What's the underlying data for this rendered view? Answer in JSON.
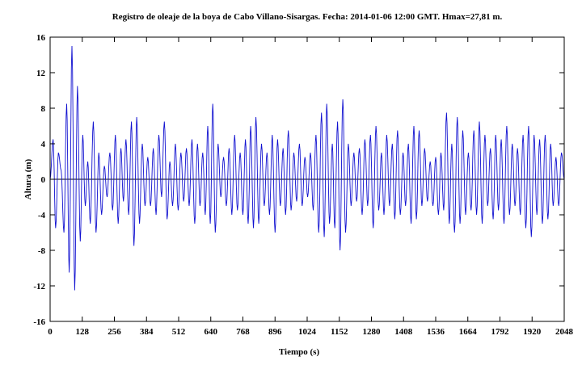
{
  "chart_data": {
    "type": "line",
    "title": "Registro de oleaje de la boya de Cabo Villano-Sisargas. Fecha: 2014-01-06 12:00 GMT. Hmax=27,81 m.",
    "xlabel": "Tiempo (s)",
    "ylabel": "Altura (m)",
    "xlim": [
      0,
      2048
    ],
    "ylim": [
      -16,
      16
    ],
    "xticks": [
      0,
      128,
      256,
      384,
      512,
      640,
      768,
      896,
      1024,
      1152,
      1280,
      1408,
      1536,
      1664,
      1792,
      1920,
      2048
    ],
    "yticks": [
      16,
      12,
      8,
      4,
      0,
      -4,
      -8,
      -12,
      -16
    ],
    "grid": false,
    "zero_line": true,
    "series_color": "#1010d0",
    "series": [
      {
        "peaks": [
          [
            0,
            0
          ],
          [
            12,
            4.5
          ],
          [
            22,
            -5.5
          ],
          [
            33,
            3
          ],
          [
            44,
            1
          ],
          [
            55,
            -6
          ],
          [
            66,
            8.5
          ],
          [
            76,
            -10.5
          ],
          [
            87,
            15
          ],
          [
            98,
            -12.5
          ],
          [
            109,
            10.5
          ],
          [
            120,
            -7
          ],
          [
            130,
            5
          ],
          [
            140,
            -3
          ],
          [
            150,
            2
          ],
          [
            160,
            -5
          ],
          [
            172,
            6.5
          ],
          [
            183,
            -6
          ],
          [
            194,
            3
          ],
          [
            205,
            -4
          ],
          [
            216,
            1.5
          ],
          [
            227,
            -2
          ],
          [
            238,
            3
          ],
          [
            249,
            -3.5
          ],
          [
            260,
            5
          ],
          [
            271,
            -5
          ],
          [
            282,
            3.5
          ],
          [
            292,
            -2.5
          ],
          [
            302,
            4.5
          ],
          [
            313,
            -4
          ],
          [
            324,
            6.5
          ],
          [
            334,
            -7.5
          ],
          [
            345,
            7
          ],
          [
            356,
            -5
          ],
          [
            367,
            4
          ],
          [
            378,
            -3
          ],
          [
            389,
            2.5
          ],
          [
            400,
            -3
          ],
          [
            411,
            3.5
          ],
          [
            422,
            -4
          ],
          [
            433,
            5
          ],
          [
            444,
            -2
          ],
          [
            455,
            6.5
          ],
          [
            466,
            -4.5
          ],
          [
            477,
            2
          ],
          [
            488,
            -3
          ],
          [
            499,
            4
          ],
          [
            510,
            -3.5
          ],
          [
            521,
            3
          ],
          [
            532,
            -2.5
          ],
          [
            543,
            3.5
          ],
          [
            554,
            -3
          ],
          [
            565,
            4.5
          ],
          [
            576,
            -5
          ],
          [
            587,
            4
          ],
          [
            597,
            -3
          ],
          [
            608,
            3
          ],
          [
            618,
            -4
          ],
          [
            628,
            6
          ],
          [
            638,
            -5
          ],
          [
            648,
            8.5
          ],
          [
            658,
            -6
          ],
          [
            669,
            4
          ],
          [
            680,
            -2
          ],
          [
            691,
            2.5
          ],
          [
            702,
            -3
          ],
          [
            713,
            3.5
          ],
          [
            724,
            -4
          ],
          [
            735,
            5
          ],
          [
            746,
            -3.5
          ],
          [
            757,
            3
          ],
          [
            768,
            -4
          ],
          [
            778,
            4.5
          ],
          [
            789,
            -5
          ],
          [
            799,
            6
          ],
          [
            810,
            -5.5
          ],
          [
            820,
            7
          ],
          [
            831,
            -5
          ],
          [
            842,
            4
          ],
          [
            853,
            -3
          ],
          [
            864,
            3
          ],
          [
            874,
            -4
          ],
          [
            885,
            5
          ],
          [
            896,
            -6
          ],
          [
            906,
            4.5
          ],
          [
            917,
            -3
          ],
          [
            928,
            3.5
          ],
          [
            938,
            -4
          ],
          [
            949,
            5.5
          ],
          [
            960,
            -3.5
          ],
          [
            971,
            3
          ],
          [
            982,
            -2.5
          ],
          [
            993,
            4
          ],
          [
            1004,
            -3
          ],
          [
            1015,
            2.5
          ],
          [
            1026,
            -2
          ],
          [
            1037,
            3
          ],
          [
            1048,
            -3.5
          ],
          [
            1059,
            5
          ],
          [
            1070,
            -6
          ],
          [
            1081,
            7.5
          ],
          [
            1092,
            -6.5
          ],
          [
            1102,
            8.5
          ],
          [
            1113,
            -5
          ],
          [
            1124,
            4
          ],
          [
            1134,
            -5.5
          ],
          [
            1145,
            6.5
          ],
          [
            1155,
            -8
          ],
          [
            1166,
            9
          ],
          [
            1177,
            -6
          ],
          [
            1188,
            4
          ],
          [
            1199,
            -3
          ],
          [
            1210,
            3
          ],
          [
            1221,
            -2.5
          ],
          [
            1232,
            3.5
          ],
          [
            1243,
            -4
          ],
          [
            1254,
            4.5
          ],
          [
            1265,
            -3
          ],
          [
            1276,
            5
          ],
          [
            1287,
            -5.5
          ],
          [
            1298,
            6
          ],
          [
            1309,
            -3.5
          ],
          [
            1320,
            3
          ],
          [
            1330,
            -4
          ],
          [
            1341,
            5
          ],
          [
            1352,
            -3
          ],
          [
            1363,
            4
          ],
          [
            1373,
            -4.5
          ],
          [
            1384,
            5.5
          ],
          [
            1395,
            -4
          ],
          [
            1406,
            3
          ],
          [
            1416,
            -3
          ],
          [
            1427,
            4
          ],
          [
            1438,
            -5
          ],
          [
            1449,
            6
          ],
          [
            1459,
            -4.5
          ],
          [
            1470,
            5.5
          ],
          [
            1481,
            -3
          ],
          [
            1492,
            3.5
          ],
          [
            1503,
            -2.5
          ],
          [
            1514,
            2
          ],
          [
            1525,
            -3
          ],
          [
            1536,
            2.5
          ],
          [
            1547,
            -4
          ],
          [
            1557,
            3
          ],
          [
            1568,
            -3.5
          ],
          [
            1579,
            7.5
          ],
          [
            1590,
            -5
          ],
          [
            1600,
            4
          ],
          [
            1611,
            -6
          ],
          [
            1622,
            7
          ],
          [
            1633,
            -5
          ],
          [
            1644,
            5.5
          ],
          [
            1655,
            -4
          ],
          [
            1666,
            3
          ],
          [
            1677,
            -3.5
          ],
          [
            1688,
            5.5
          ],
          [
            1699,
            -4
          ],
          [
            1710,
            6.5
          ],
          [
            1721,
            -5
          ],
          [
            1732,
            5
          ],
          [
            1743,
            -3
          ],
          [
            1754,
            3.5
          ],
          [
            1765,
            -4.5
          ],
          [
            1775,
            5
          ],
          [
            1786,
            -3.5
          ],
          [
            1797,
            4.5
          ],
          [
            1808,
            -5
          ],
          [
            1819,
            6
          ],
          [
            1830,
            -4
          ],
          [
            1841,
            4
          ],
          [
            1852,
            -3
          ],
          [
            1862,
            3.5
          ],
          [
            1873,
            -4
          ],
          [
            1884,
            5
          ],
          [
            1895,
            -5.5
          ],
          [
            1906,
            6
          ],
          [
            1917,
            -6.5
          ],
          [
            1928,
            5
          ],
          [
            1939,
            -4
          ],
          [
            1950,
            4.5
          ],
          [
            1961,
            -5
          ],
          [
            1972,
            5
          ],
          [
            1983,
            -4.5
          ],
          [
            1994,
            4
          ],
          [
            2004,
            -3
          ],
          [
            2015,
            2.5
          ],
          [
            2026,
            -3
          ],
          [
            2037,
            3
          ],
          [
            2048,
            0
          ]
        ]
      }
    ]
  }
}
